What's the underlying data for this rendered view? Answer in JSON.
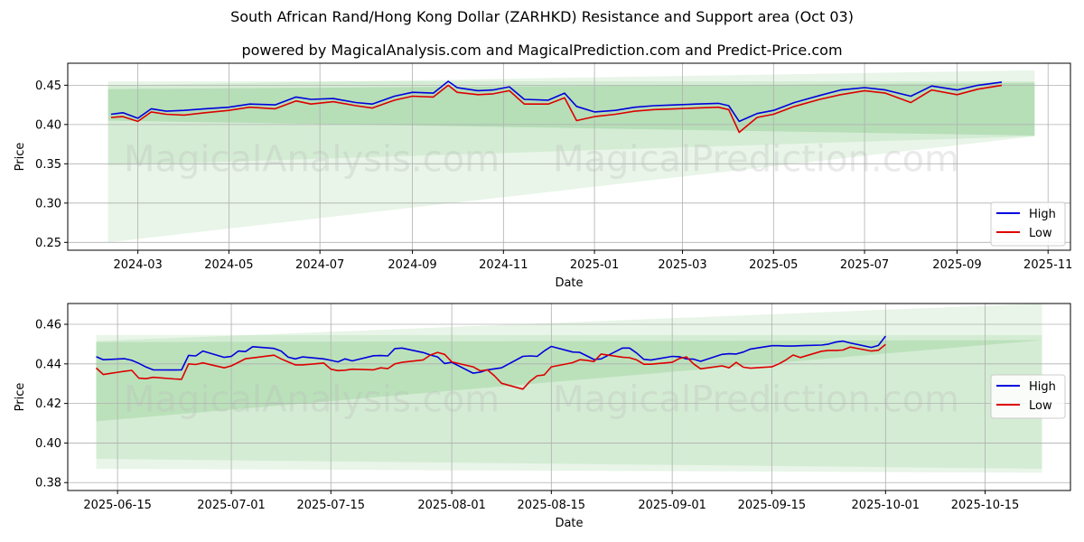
{
  "header": {
    "title": "South African Rand/Hong Kong Dollar (ZARHKD) Resistance and Support area (Oct 03)",
    "subtitle": "powered by MagicalAnalysis.com and MagicalPrediction.com and Predict-Price.com"
  },
  "watermarks": [
    "MagicalAnalysis.com",
    "MagicalPrediction.com"
  ],
  "colors": {
    "high": "#0000dd",
    "low": "#dd0000",
    "band": "#4caf50",
    "grid": "#b0b0b0"
  },
  "chart_data": [
    {
      "type": "line",
      "title": "",
      "xlabel": "Date",
      "ylabel": "Price",
      "ylim": [
        0.24,
        0.478
      ],
      "xlim": [
        "2024-01-14",
        "2025-11-16"
      ],
      "grid": true,
      "legend": "bottom-right",
      "yticks": [
        0.25,
        0.3,
        0.35,
        0.4,
        0.45
      ],
      "ytick_labels": [
        "0.25",
        "0.30",
        "0.35",
        "0.40",
        "0.45"
      ],
      "xticks": [
        "2024-03-01",
        "2024-05-01",
        "2024-07-01",
        "2024-09-01",
        "2024-11-01",
        "2025-01-01",
        "2025-03-01",
        "2025-05-01",
        "2025-07-01",
        "2025-09-01",
        "2025-11-01"
      ],
      "xtick_labels": [
        "2024-03",
        "2024-05",
        "2024-07",
        "2024-09",
        "2024-11",
        "2025-01",
        "2025-03",
        "2025-05",
        "2025-07",
        "2025-09",
        "2025-11"
      ],
      "bands": [
        {
          "x_start": "2024-02-10",
          "x_end": "2025-10-23",
          "upper": [
            0.455,
            0.455
          ],
          "lower": [
            0.25,
            0.385
          ],
          "opacity": 0.13
        },
        {
          "x_start": "2024-02-10",
          "x_end": "2025-10-23",
          "upper": [
            0.45,
            0.469
          ],
          "lower": [
            0.348,
            0.385
          ],
          "opacity": 0.13
        },
        {
          "x_start": "2024-02-10",
          "x_end": "2025-10-23",
          "upper": [
            0.445,
            0.453
          ],
          "lower": [
            0.405,
            0.386
          ],
          "opacity": 0.22
        }
      ],
      "series": [
        {
          "name": "High",
          "color": "#0000dd",
          "x": [
            "2024-02-12",
            "2024-02-20",
            "2024-03-01",
            "2024-03-10",
            "2024-03-20",
            "2024-04-01",
            "2024-04-15",
            "2024-05-01",
            "2024-05-15",
            "2024-06-01",
            "2024-06-15",
            "2024-06-25",
            "2024-07-10",
            "2024-07-25",
            "2024-08-05",
            "2024-08-20",
            "2024-09-01",
            "2024-09-15",
            "2024-09-25",
            "2024-10-01",
            "2024-10-15",
            "2024-10-25",
            "2024-11-05",
            "2024-11-15",
            "2024-12-01",
            "2024-12-12",
            "2024-12-20",
            "2025-01-01",
            "2025-01-15",
            "2025-01-28",
            "2025-02-10",
            "2025-02-25",
            "2025-03-10",
            "2025-03-25",
            "2025-04-01",
            "2025-04-08",
            "2025-04-20",
            "2025-05-01",
            "2025-05-15",
            "2025-06-01",
            "2025-06-15",
            "2025-07-01",
            "2025-07-15",
            "2025-08-01",
            "2025-08-15",
            "2025-09-01",
            "2025-09-15",
            "2025-10-01"
          ],
          "values": [
            0.413,
            0.415,
            0.408,
            0.42,
            0.417,
            0.418,
            0.42,
            0.422,
            0.426,
            0.425,
            0.435,
            0.432,
            0.433,
            0.428,
            0.426,
            0.436,
            0.441,
            0.44,
            0.455,
            0.447,
            0.443,
            0.444,
            0.448,
            0.432,
            0.431,
            0.44,
            0.423,
            0.416,
            0.418,
            0.422,
            0.424,
            0.425,
            0.426,
            0.427,
            0.424,
            0.404,
            0.414,
            0.418,
            0.428,
            0.437,
            0.444,
            0.447,
            0.444,
            0.436,
            0.449,
            0.444,
            0.45,
            0.454
          ]
        },
        {
          "name": "Low",
          "color": "#dd0000",
          "x": [
            "2024-02-12",
            "2024-02-20",
            "2024-03-01",
            "2024-03-10",
            "2024-03-20",
            "2024-04-01",
            "2024-04-15",
            "2024-05-01",
            "2024-05-15",
            "2024-06-01",
            "2024-06-15",
            "2024-06-25",
            "2024-07-10",
            "2024-07-25",
            "2024-08-05",
            "2024-08-20",
            "2024-09-01",
            "2024-09-15",
            "2024-09-25",
            "2024-10-01",
            "2024-10-15",
            "2024-10-25",
            "2024-11-05",
            "2024-11-15",
            "2024-12-01",
            "2024-12-12",
            "2024-12-20",
            "2025-01-01",
            "2025-01-15",
            "2025-01-28",
            "2025-02-10",
            "2025-02-25",
            "2025-03-10",
            "2025-03-25",
            "2025-04-01",
            "2025-04-08",
            "2025-04-20",
            "2025-05-01",
            "2025-05-15",
            "2025-06-01",
            "2025-06-15",
            "2025-07-01",
            "2025-07-15",
            "2025-08-01",
            "2025-08-15",
            "2025-09-01",
            "2025-09-15",
            "2025-10-01"
          ],
          "values": [
            0.409,
            0.41,
            0.404,
            0.416,
            0.413,
            0.412,
            0.415,
            0.418,
            0.422,
            0.42,
            0.43,
            0.426,
            0.429,
            0.424,
            0.421,
            0.431,
            0.436,
            0.435,
            0.45,
            0.441,
            0.438,
            0.439,
            0.443,
            0.426,
            0.426,
            0.434,
            0.405,
            0.41,
            0.413,
            0.417,
            0.419,
            0.42,
            0.421,
            0.422,
            0.419,
            0.39,
            0.409,
            0.413,
            0.423,
            0.432,
            0.438,
            0.443,
            0.44,
            0.428,
            0.444,
            0.438,
            0.445,
            0.45
          ]
        }
      ]
    },
    {
      "type": "line",
      "title": "",
      "xlabel": "Date",
      "ylabel": "Price",
      "ylim": [
        0.376,
        0.4705
      ],
      "xlim": [
        "2025-06-08",
        "2025-10-27"
      ],
      "grid": true,
      "legend": "right",
      "yticks": [
        0.38,
        0.4,
        0.42,
        0.44,
        0.46
      ],
      "ytick_labels": [
        "0.38",
        "0.40",
        "0.42",
        "0.44",
        "0.46"
      ],
      "xticks": [
        "2025-06-15",
        "2025-07-01",
        "2025-07-15",
        "2025-08-01",
        "2025-08-15",
        "2025-09-01",
        "2025-09-15",
        "2025-10-01",
        "2025-10-15"
      ],
      "xtick_labels": [
        "2025-06-15",
        "2025-07-01",
        "2025-07-15",
        "2025-08-01",
        "2025-08-15",
        "2025-09-01",
        "2025-09-15",
        "2025-10-01",
        "2025-10-15"
      ],
      "bands": [
        {
          "x_start": "2025-06-12",
          "x_end": "2025-10-23",
          "upper": [
            0.4545,
            0.4545
          ],
          "lower": [
            0.387,
            0.385
          ],
          "opacity": 0.13
        },
        {
          "x_start": "2025-06-12",
          "x_end": "2025-10-23",
          "upper": [
            0.4515,
            0.4705
          ],
          "lower": [
            0.392,
            0.387
          ],
          "opacity": 0.13
        },
        {
          "x_start": "2025-06-12",
          "x_end": "2025-10-23",
          "upper": [
            0.451,
            0.452
          ],
          "lower": [
            0.411,
            0.452
          ],
          "opacity": 0.18
        }
      ],
      "series": [
        {
          "name": "High",
          "color": "#0000dd",
          "x": [
            "2025-06-12",
            "2025-06-13",
            "2025-06-16",
            "2025-06-17",
            "2025-06-18",
            "2025-06-19",
            "2025-06-20",
            "2025-06-23",
            "2025-06-24",
            "2025-06-25",
            "2025-06-26",
            "2025-06-27",
            "2025-06-30",
            "2025-07-01",
            "2025-07-02",
            "2025-07-03",
            "2025-07-04",
            "2025-07-07",
            "2025-07-08",
            "2025-07-09",
            "2025-07-10",
            "2025-07-11",
            "2025-07-14",
            "2025-07-15",
            "2025-07-16",
            "2025-07-17",
            "2025-07-18",
            "2025-07-21",
            "2025-07-22",
            "2025-07-23",
            "2025-07-24",
            "2025-07-25",
            "2025-07-28",
            "2025-07-29",
            "2025-07-30",
            "2025-07-31",
            "2025-08-01",
            "2025-08-04",
            "2025-08-05",
            "2025-08-06",
            "2025-08-07",
            "2025-08-08",
            "2025-08-11",
            "2025-08-12",
            "2025-08-13",
            "2025-08-14",
            "2025-08-15",
            "2025-08-18",
            "2025-08-19",
            "2025-08-20",
            "2025-08-21",
            "2025-08-22",
            "2025-08-25",
            "2025-08-26",
            "2025-08-27",
            "2025-08-28",
            "2025-08-29",
            "2025-09-01",
            "2025-09-02",
            "2025-09-03",
            "2025-09-04",
            "2025-09-05",
            "2025-09-08",
            "2025-09-09",
            "2025-09-10",
            "2025-09-11",
            "2025-09-12",
            "2025-09-15",
            "2025-09-16",
            "2025-09-17",
            "2025-09-18",
            "2025-09-19",
            "2025-09-22",
            "2025-09-23",
            "2025-09-24",
            "2025-09-25",
            "2025-09-26",
            "2025-09-29",
            "2025-09-30",
            "2025-10-01"
          ],
          "values": [
            0.4436,
            0.4421,
            0.4426,
            0.4418,
            0.4403,
            0.4384,
            0.437,
            0.4369,
            0.437,
            0.4443,
            0.444,
            0.4465,
            0.4433,
            0.4438,
            0.4465,
            0.4462,
            0.4487,
            0.4478,
            0.4465,
            0.4434,
            0.4425,
            0.4435,
            0.4425,
            0.4418,
            0.441,
            0.4425,
            0.4415,
            0.4441,
            0.4442,
            0.444,
            0.4477,
            0.448,
            0.4457,
            0.4445,
            0.4435,
            0.4402,
            0.4408,
            0.4353,
            0.4358,
            0.437,
            0.4375,
            0.438,
            0.4438,
            0.444,
            0.4438,
            0.4465,
            0.4488,
            0.446,
            0.4458,
            0.444,
            0.4422,
            0.4425,
            0.448,
            0.448,
            0.4455,
            0.4423,
            0.4419,
            0.4438,
            0.4436,
            0.4425,
            0.4424,
            0.4413,
            0.4448,
            0.4451,
            0.445,
            0.446,
            0.4475,
            0.4492,
            0.4492,
            0.449,
            0.449,
            0.4492,
            0.4495,
            0.45,
            0.451,
            0.4515,
            0.4506,
            0.4483,
            0.4493,
            0.454
          ]
        },
        {
          "name": "Low",
          "color": "#dd0000",
          "x": [
            "2025-06-12",
            "2025-06-13",
            "2025-06-16",
            "2025-06-17",
            "2025-06-18",
            "2025-06-19",
            "2025-06-20",
            "2025-06-23",
            "2025-06-24",
            "2025-06-25",
            "2025-06-26",
            "2025-06-27",
            "2025-06-30",
            "2025-07-01",
            "2025-07-02",
            "2025-07-03",
            "2025-07-04",
            "2025-07-07",
            "2025-07-08",
            "2025-07-09",
            "2025-07-10",
            "2025-07-11",
            "2025-07-14",
            "2025-07-15",
            "2025-07-16",
            "2025-07-17",
            "2025-07-18",
            "2025-07-21",
            "2025-07-22",
            "2025-07-23",
            "2025-07-24",
            "2025-07-25",
            "2025-07-28",
            "2025-07-29",
            "2025-07-30",
            "2025-07-31",
            "2025-08-01",
            "2025-08-04",
            "2025-08-05",
            "2025-08-06",
            "2025-08-07",
            "2025-08-08",
            "2025-08-11",
            "2025-08-12",
            "2025-08-13",
            "2025-08-14",
            "2025-08-15",
            "2025-08-18",
            "2025-08-19",
            "2025-08-20",
            "2025-08-21",
            "2025-08-22",
            "2025-08-25",
            "2025-08-26",
            "2025-08-27",
            "2025-08-28",
            "2025-08-29",
            "2025-09-01",
            "2025-09-02",
            "2025-09-03",
            "2025-09-04",
            "2025-09-05",
            "2025-09-08",
            "2025-09-09",
            "2025-09-10",
            "2025-09-11",
            "2025-09-12",
            "2025-09-15",
            "2025-09-16",
            "2025-09-17",
            "2025-09-18",
            "2025-09-19",
            "2025-09-22",
            "2025-09-23",
            "2025-09-24",
            "2025-09-25",
            "2025-09-26",
            "2025-09-29",
            "2025-09-30",
            "2025-10-01"
          ],
          "values": [
            0.4379,
            0.4346,
            0.4363,
            0.4367,
            0.4328,
            0.4325,
            0.4332,
            0.4324,
            0.4322,
            0.44,
            0.4397,
            0.4405,
            0.438,
            0.439,
            0.4408,
            0.4426,
            0.443,
            0.4444,
            0.4425,
            0.441,
            0.4395,
            0.4395,
            0.4404,
            0.4373,
            0.4366,
            0.4368,
            0.4373,
            0.437,
            0.438,
            0.4376,
            0.44,
            0.4408,
            0.442,
            0.4445,
            0.4458,
            0.4448,
            0.441,
            0.4385,
            0.4365,
            0.437,
            0.434,
            0.4302,
            0.4272,
            0.4312,
            0.434,
            0.4344,
            0.4385,
            0.4406,
            0.4421,
            0.4418,
            0.4412,
            0.445,
            0.4434,
            0.4431,
            0.442,
            0.4398,
            0.4398,
            0.4408,
            0.4427,
            0.4435,
            0.44,
            0.4375,
            0.439,
            0.438,
            0.4408,
            0.4383,
            0.4378,
            0.4385,
            0.44,
            0.442,
            0.4445,
            0.4432,
            0.4464,
            0.4468,
            0.4468,
            0.447,
            0.4485,
            0.4465,
            0.4469,
            0.4498
          ]
        }
      ]
    }
  ]
}
